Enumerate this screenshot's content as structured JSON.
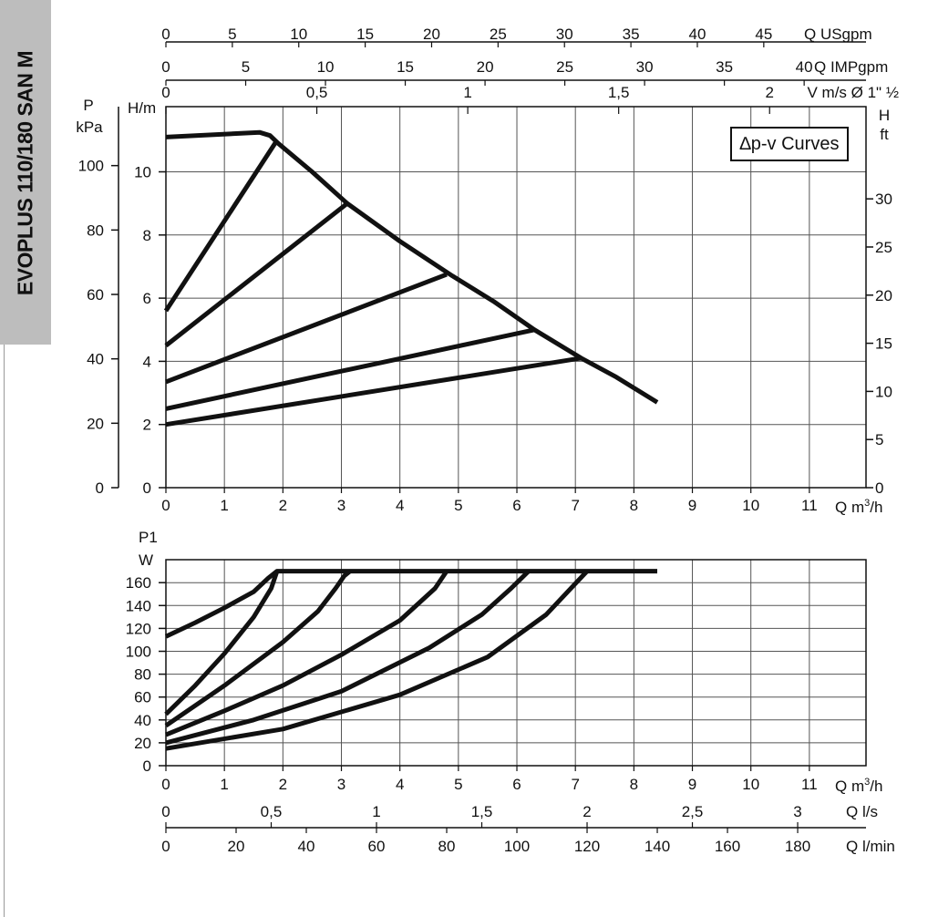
{
  "sidebar": {
    "title": "EVOPLUS 110/180 SAN M"
  },
  "legend": "∆p-v Curves",
  "chart_data": [
    {
      "type": "line",
      "title": "",
      "legend": "∆p-v Curves",
      "x_axis": {
        "label": "Q m³/h",
        "range": [
          0,
          12
        ],
        "ticks": [
          "0",
          "1",
          "2",
          "3",
          "4",
          "5",
          "6",
          "7",
          "8",
          "9",
          "10",
          "11"
        ]
      },
      "y_axis_left": {
        "label": "H/m",
        "range": [
          0,
          11.6
        ],
        "ticks": [
          "0",
          "2",
          "4",
          "6",
          "8",
          "10"
        ]
      },
      "y_axis_left_outer": {
        "label": "P",
        "unit": "kPa",
        "ticks": [
          "0",
          "20",
          "40",
          "60",
          "80",
          "100"
        ]
      },
      "y_axis_right": {
        "label": "H",
        "unit": "ft",
        "ticks": [
          "0",
          "5",
          "10",
          "15",
          "20",
          "25",
          "30"
        ]
      },
      "top_axes": [
        {
          "label": "Q USgpm",
          "ticks": [
            "0",
            "5",
            "10",
            "15",
            "20",
            "25",
            "30",
            "35",
            "40",
            "45"
          ]
        },
        {
          "label": "Q IMPgpm",
          "ticks": [
            "0",
            "5",
            "10",
            "15",
            "20",
            "25",
            "30",
            "35",
            "40"
          ]
        },
        {
          "label": "V m/s Ø 1\" ½",
          "ticks": [
            "0",
            "0,5",
            "1",
            "1,5",
            "2"
          ]
        }
      ],
      "grid": true,
      "series": [
        {
          "points": [
            [
              0,
              11.1
            ],
            [
              1.6,
              11.25
            ],
            [
              1.78,
              11.15
            ],
            [
              1.92,
              10.9
            ],
            [
              2.5,
              10.0
            ],
            [
              3.1,
              9.0
            ],
            [
              4.0,
              7.8
            ],
            [
              4.9,
              6.7
            ],
            [
              5.6,
              5.9
            ],
            [
              6.3,
              5.0
            ],
            [
              7.1,
              4.1
            ],
            [
              7.7,
              3.5
            ],
            [
              8.4,
              2.7
            ]
          ]
        },
        {
          "points": [
            [
              0,
              5.6
            ],
            [
              1.9,
              11.0
            ]
          ]
        },
        {
          "points": [
            [
              0,
              4.5
            ],
            [
              3.1,
              9.0
            ]
          ]
        },
        {
          "points": [
            [
              0,
              3.35
            ],
            [
              4.8,
              6.75
            ]
          ]
        },
        {
          "points": [
            [
              0,
              2.5
            ],
            [
              6.3,
              5.0
            ]
          ]
        },
        {
          "points": [
            [
              0,
              2.0
            ],
            [
              7.1,
              4.1
            ]
          ]
        }
      ]
    },
    {
      "type": "line",
      "title": "",
      "x_axis": {
        "label": "Q m³/h",
        "range": [
          0,
          12
        ],
        "ticks": [
          "0",
          "1",
          "2",
          "3",
          "4",
          "5",
          "6",
          "7",
          "8",
          "9",
          "10",
          "11"
        ]
      },
      "y_axis_left": {
        "label": "P1",
        "unit": "W",
        "range": [
          0,
          175
        ],
        "ticks": [
          "0",
          "20",
          "40",
          "60",
          "80",
          "100",
          "120",
          "140",
          "160"
        ]
      },
      "bottom_axes": [
        {
          "label": "Q l/s",
          "ticks": [
            "0",
            "0,5",
            "1",
            "1,5",
            "2",
            "2,5",
            "3"
          ]
        },
        {
          "label": "Q l/min",
          "ticks": [
            "0",
            "20",
            "40",
            "60",
            "80",
            "100",
            "120",
            "140",
            "160",
            "180"
          ]
        }
      ],
      "grid": true,
      "series": [
        {
          "points": [
            [
              0,
              113
            ],
            [
              0.5,
              125
            ],
            [
              1.0,
              138
            ],
            [
              1.5,
              152
            ],
            [
              1.75,
              164
            ],
            [
              1.9,
              170
            ],
            [
              8.4,
              170
            ]
          ]
        },
        {
          "points": [
            [
              0,
              45
            ],
            [
              0.5,
              70
            ],
            [
              1.0,
              98
            ],
            [
              1.5,
              130
            ],
            [
              1.8,
              155
            ],
            [
              1.9,
              170
            ]
          ]
        },
        {
          "points": [
            [
              0,
              35
            ],
            [
              1.0,
              70
            ],
            [
              2.0,
              108
            ],
            [
              2.6,
              135
            ],
            [
              2.9,
              155
            ],
            [
              3.05,
              166
            ],
            [
              3.15,
              170
            ]
          ]
        },
        {
          "points": [
            [
              0,
              27
            ],
            [
              1.0,
              48
            ],
            [
              2.0,
              70
            ],
            [
              3.0,
              97
            ],
            [
              4.0,
              127
            ],
            [
              4.6,
              155
            ],
            [
              4.8,
              170
            ]
          ]
        },
        {
          "points": [
            [
              0,
              20
            ],
            [
              1.5,
              40
            ],
            [
              3.0,
              65
            ],
            [
              4.5,
              103
            ],
            [
              5.4,
              132
            ],
            [
              5.9,
              155
            ],
            [
              6.2,
              170
            ]
          ]
        },
        {
          "points": [
            [
              0,
              15
            ],
            [
              2.0,
              32
            ],
            [
              4.0,
              62
            ],
            [
              5.5,
              95
            ],
            [
              6.5,
              132
            ],
            [
              7.2,
              170
            ]
          ]
        }
      ]
    }
  ]
}
